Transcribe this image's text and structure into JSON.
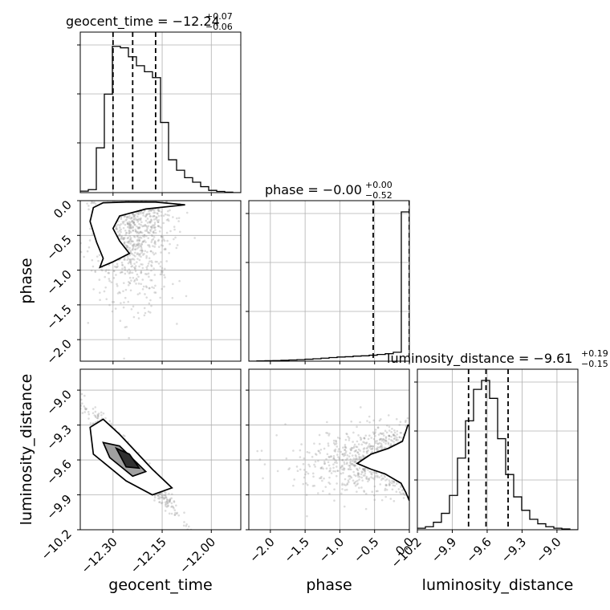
{
  "chart_data": {
    "type": "corner",
    "parameters": [
      "geocent_time",
      "phase",
      "luminosity_distance"
    ],
    "ranges": {
      "geocent_time": [
        -12.4,
        -11.91
      ],
      "phase": [
        -2.31,
        0.0
      ],
      "luminosity_distance": [
        -10.2,
        -8.82
      ]
    },
    "grid": true,
    "titles": [
      {
        "param": "geocent_time",
        "prefix": "geocent_time = −12.24",
        "sup": "+0.07",
        "sub": "−0.06"
      },
      {
        "param": "phase",
        "prefix": "phase = −0.00",
        "sup": "+0.00",
        "sub": "−0.52"
      },
      {
        "param": "luminosity_distance",
        "prefix": "luminosity_distance = −9.61",
        "sup": "+0.19",
        "sub": "−0.15"
      }
    ],
    "axis_labels": {
      "geocent_time": "geocent_time",
      "phase": "phase",
      "luminosity_distance": "luminosity_distance"
    },
    "ticks": {
      "geocent_time": [
        {
          "v": -12.3,
          "label": "−12.30"
        },
        {
          "v": -12.15,
          "label": "−12.15"
        },
        {
          "v": -12.0,
          "label": "−12.00"
        }
      ],
      "phase": [
        {
          "v": -2.0,
          "label": "−2.0"
        },
        {
          "v": -1.5,
          "label": "−1.5"
        },
        {
          "v": -1.0,
          "label": "−1.0"
        },
        {
          "v": -0.5,
          "label": "−0.5"
        },
        {
          "v": 0.0,
          "label": "0.0"
        }
      ],
      "luminosity_distance": [
        {
          "v": -10.2,
          "label": "−10.2"
        },
        {
          "v": -9.9,
          "label": "−9.9"
        },
        {
          "v": -9.6,
          "label": "−9.6"
        },
        {
          "v": -9.3,
          "label": "−9.3"
        },
        {
          "v": -9.0,
          "label": "−9.0"
        }
      ]
    },
    "histograms": {
      "geocent_time": {
        "edges": [
          -12.4,
          -12.3755,
          -12.351,
          -12.3265,
          -12.302,
          -12.2775,
          -12.253,
          -12.2285,
          -12.204,
          -12.1795,
          -12.155,
          -12.1305,
          -12.106,
          -12.0815,
          -12.057,
          -12.0325,
          -12.008,
          -11.9835,
          -11.959,
          -11.9345,
          -11.91
        ],
        "counts": [
          0.01,
          0.02,
          0.3,
          0.66,
          0.98,
          0.97,
          0.91,
          0.85,
          0.81,
          0.77,
          0.47,
          0.22,
          0.15,
          0.1,
          0.07,
          0.04,
          0.015,
          0.008,
          0.003,
          0.0
        ],
        "quantiles": [
          -12.3,
          -12.24,
          -12.17
        ]
      },
      "phase": {
        "edges": [
          -2.31,
          -2.1945,
          -2.079,
          -1.9635,
          -1.848,
          -1.7325,
          -1.617,
          -1.5015,
          -1.386,
          -1.2705,
          -1.155,
          -1.0395,
          -0.924,
          -0.8085,
          -0.693,
          -0.5775,
          -0.462,
          -0.3465,
          -0.231,
          -0.1155,
          0.0
        ],
        "counts": [
          0.0,
          0.002,
          0.003,
          0.004,
          0.006,
          0.008,
          0.01,
          0.013,
          0.016,
          0.02,
          0.024,
          0.028,
          0.03,
          0.034,
          0.036,
          0.04,
          0.045,
          0.05,
          0.06,
          1.0
        ],
        "quantiles": [
          -0.52,
          0.0,
          0.0
        ]
      },
      "luminosity_distance": {
        "edges": [
          -10.2,
          -10.131,
          -10.062,
          -9.993,
          -9.924,
          -9.855,
          -9.786,
          -9.717,
          -9.648,
          -9.579,
          -9.51,
          -9.441,
          -9.372,
          -9.303,
          -9.234,
          -9.165,
          -9.096,
          -9.027,
          -8.958,
          -8.889,
          -8.82
        ],
        "counts": [
          0.01,
          0.02,
          0.05,
          0.11,
          0.23,
          0.48,
          0.73,
          0.94,
          1.0,
          0.88,
          0.61,
          0.37,
          0.22,
          0.13,
          0.07,
          0.04,
          0.02,
          0.01,
          0.005,
          0.0
        ],
        "quantiles": [
          -9.76,
          -9.61,
          -9.42
        ]
      }
    },
    "contours": {
      "phase_vs_geocent_time": [
        [
          [
            -12.33,
            -0.03
          ],
          [
            -12.26,
            -0.02
          ],
          [
            -12.17,
            -0.02
          ],
          [
            -12.08,
            -0.06
          ],
          [
            -12.2,
            -0.12
          ],
          [
            -12.28,
            -0.22
          ],
          [
            -12.3,
            -0.4
          ],
          [
            -12.28,
            -0.58
          ],
          [
            -12.25,
            -0.76
          ],
          [
            -12.3,
            -0.88
          ],
          [
            -12.34,
            -0.96
          ],
          [
            -12.33,
            -0.83
          ],
          [
            -12.35,
            -0.6
          ],
          [
            -12.37,
            -0.3
          ],
          [
            -12.36,
            -0.1
          ],
          [
            -12.33,
            -0.03
          ]
        ]
      ],
      "luminosity_distance_vs_geocent_time": [
        [
          [
            -12.37,
            -9.32
          ],
          [
            -12.33,
            -9.25
          ],
          [
            -12.28,
            -9.38
          ],
          [
            -12.18,
            -9.68
          ],
          [
            -12.12,
            -9.84
          ],
          [
            -12.18,
            -9.9
          ],
          [
            -12.26,
            -9.78
          ],
          [
            -12.36,
            -9.55
          ],
          [
            -12.37,
            -9.32
          ]
        ],
        [
          [
            -12.33,
            -9.45
          ],
          [
            -12.28,
            -9.48
          ],
          [
            -12.2,
            -9.7
          ],
          [
            -12.24,
            -9.74
          ],
          [
            -12.31,
            -9.58
          ],
          [
            -12.33,
            -9.45
          ]
        ],
        [
          [
            -12.29,
            -9.5
          ],
          [
            -12.25,
            -9.55
          ],
          [
            -12.22,
            -9.67
          ],
          [
            -12.26,
            -9.66
          ],
          [
            -12.29,
            -9.5
          ]
        ]
      ],
      "luminosity_distance_vs_phase": [
        [
          [
            -0.75,
            -9.63
          ],
          [
            -0.55,
            -9.55
          ],
          [
            -0.3,
            -9.5
          ],
          [
            -0.1,
            -9.44
          ],
          [
            -0.02,
            -9.3
          ],
          [
            0.0,
            -9.3
          ],
          [
            0.0,
            -9.95
          ],
          [
            -0.05,
            -9.88
          ],
          [
            -0.12,
            -9.8
          ],
          [
            -0.35,
            -9.72
          ],
          [
            -0.55,
            -9.68
          ],
          [
            -0.75,
            -9.63
          ]
        ]
      ]
    }
  }
}
